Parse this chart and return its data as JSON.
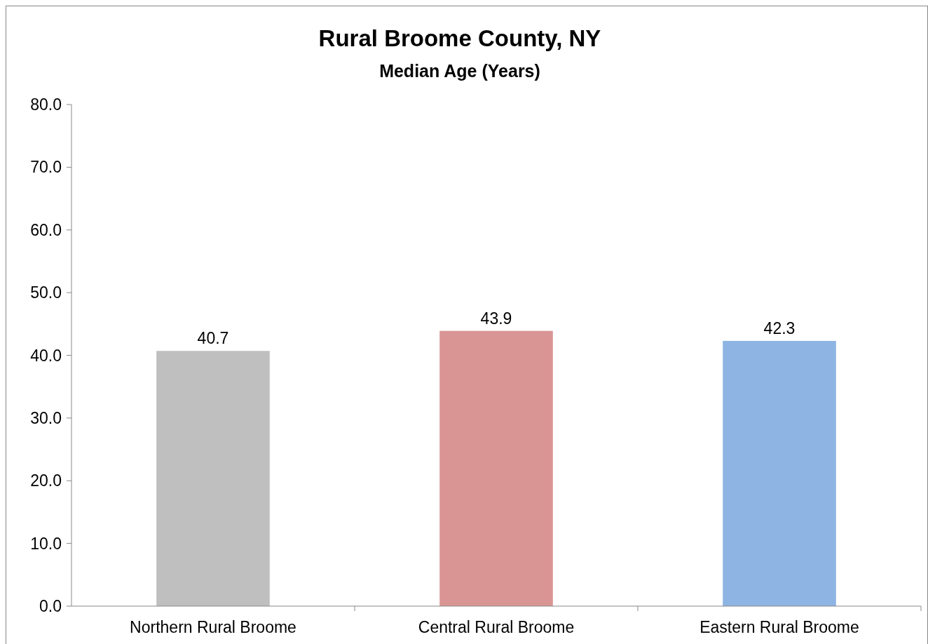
{
  "chart_data": {
    "type": "bar",
    "title": "Rural Broome County, NY",
    "subtitle": "Median Age (Years)",
    "categories": [
      "Northern Rural Broome",
      "Central Rural Broome",
      "Eastern Rural Broome"
    ],
    "values": [
      40.7,
      43.9,
      42.3
    ],
    "colors": [
      "#bfbfbf",
      "#d99594",
      "#8eb4e3"
    ],
    "ylim": [
      0,
      80
    ],
    "yticks": [
      {
        "value": 0,
        "label": "0.0"
      },
      {
        "value": 10,
        "label": "10.0"
      },
      {
        "value": 20,
        "label": "20.0"
      },
      {
        "value": 30,
        "label": "30.0"
      },
      {
        "value": 40,
        "label": "40.0"
      },
      {
        "value": 50,
        "label": "50.0"
      },
      {
        "value": 60,
        "label": "60.0"
      },
      {
        "value": 70,
        "label": "70.0"
      },
      {
        "value": 80,
        "label": "80.0"
      }
    ],
    "data_labels": true
  }
}
